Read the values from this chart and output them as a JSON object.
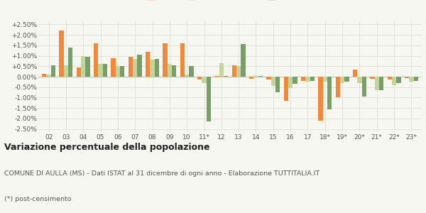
{
  "years": [
    "02",
    "03",
    "04",
    "05",
    "06",
    "07",
    "08",
    "09",
    "10",
    "11*",
    "12",
    "13",
    "14",
    "15",
    "16",
    "17",
    "18*",
    "19*",
    "20*",
    "21*",
    "22*",
    "23*"
  ],
  "aulla": [
    0.15,
    2.2,
    0.45,
    1.6,
    0.9,
    0.95,
    1.2,
    1.6,
    1.6,
    -0.15,
    0.02,
    0.55,
    -0.1,
    -0.15,
    -1.15,
    -0.2,
    -2.1,
    -1.0,
    0.35,
    -0.1,
    -0.15,
    -0.08
  ],
  "provincia": [
    0.1,
    0.55,
    1.0,
    0.6,
    0.5,
    0.85,
    0.8,
    0.6,
    0.1,
    -0.3,
    0.65,
    0.5,
    0.05,
    -0.45,
    -0.55,
    -0.25,
    -0.25,
    -0.3,
    -0.3,
    -0.65,
    -0.4,
    -0.25
  ],
  "toscana": [
    0.55,
    1.4,
    0.95,
    0.6,
    0.5,
    1.05,
    0.85,
    0.55,
    0.5,
    -2.15,
    0.05,
    1.55,
    0.05,
    -0.75,
    -0.35,
    -0.2,
    -1.55,
    -0.25,
    -0.95,
    -0.65,
    -0.3,
    -0.2
  ],
  "color_aulla": "#f4883a",
  "color_provincia": "#c5d49a",
  "color_toscana": "#7a9e6a",
  "title": "Variazione percentuale della popolazione",
  "subtitle": "COMUNE DI AULLA (MS) - Dati ISTAT al 31 dicembre di ogni anno - Elaborazione TUTTITALIA.IT",
  "footnote": "(*) post-censimento",
  "ylim": [
    -2.65,
    2.65
  ],
  "yticks": [
    -2.5,
    -2.0,
    -1.5,
    -1.0,
    -0.5,
    0.0,
    0.5,
    1.0,
    1.5,
    2.0,
    2.5
  ],
  "bg_color": "#f7f7f2",
  "grid_color": "#e0e0d5",
  "text_color": "#555555"
}
